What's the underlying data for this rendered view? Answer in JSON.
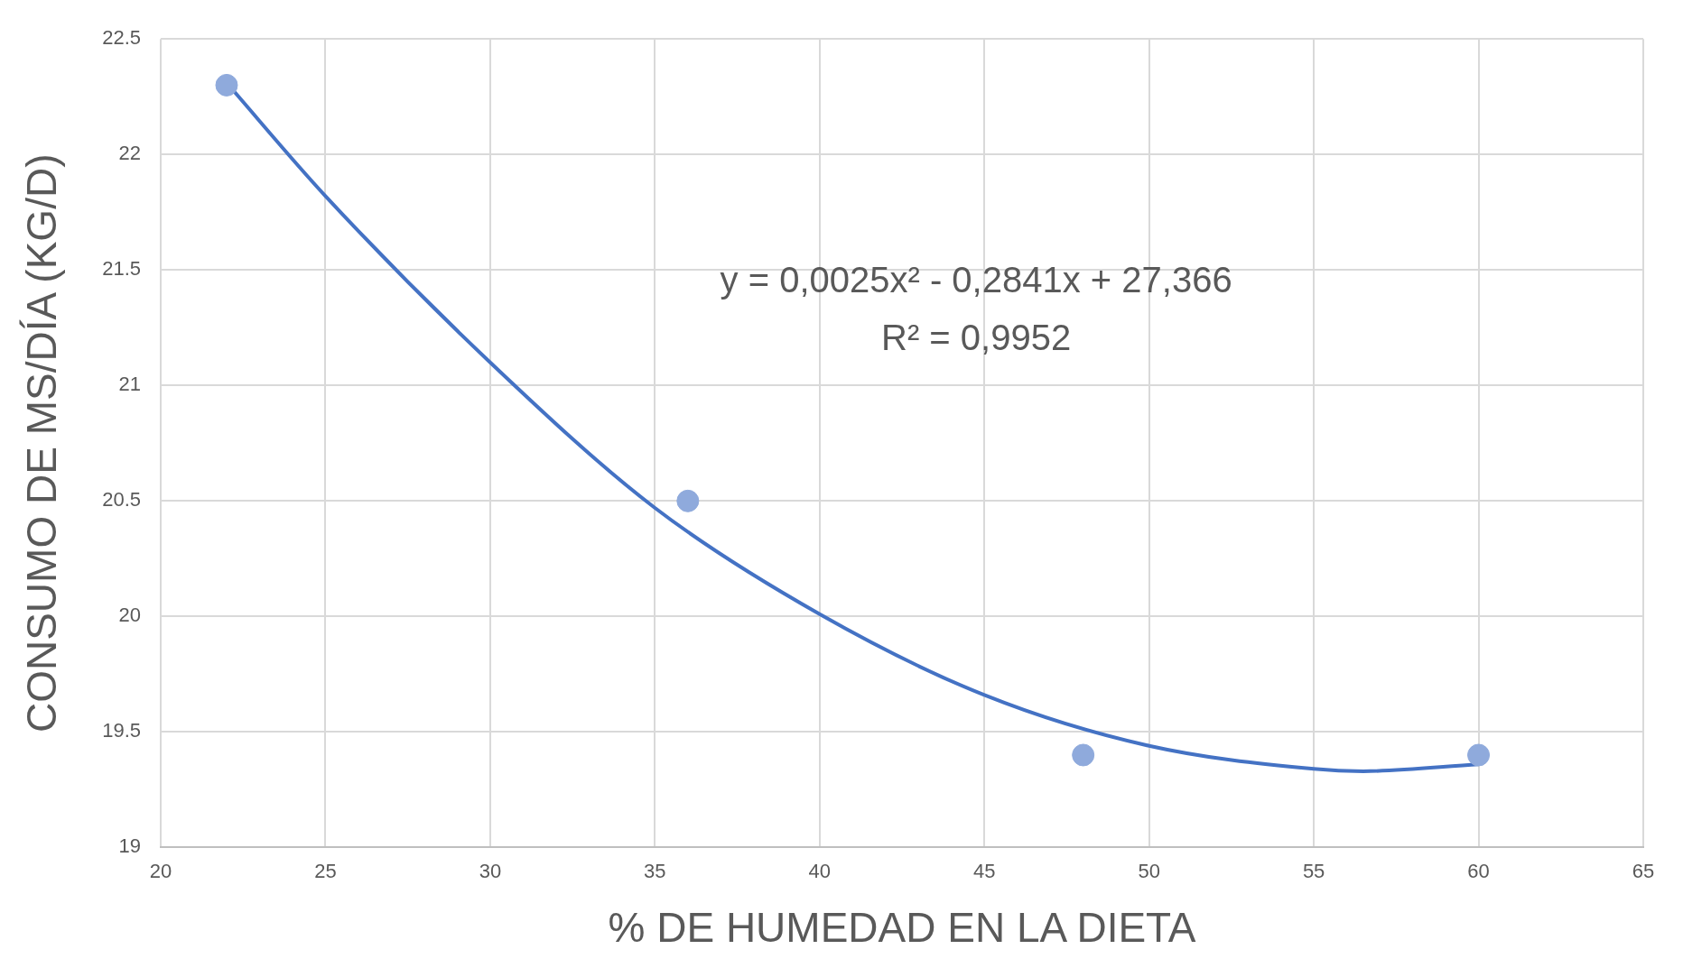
{
  "chart_data": {
    "type": "scatter",
    "xlabel": "% DE HUMEDAD EN LA DIETA",
    "ylabel": "CONSUMO DE MS/DÍA (KG/D)",
    "series": [
      {
        "color": "#8faadc",
        "marker": "circle",
        "x": [
          22,
          36,
          48,
          60
        ],
        "values": [
          22.3,
          20.5,
          19.4,
          19.4
        ]
      },
      {
        "type": "line",
        "color": "#4472c4",
        "x": [
          22,
          25,
          30,
          35,
          40,
          45,
          50,
          55,
          56.5,
          60
        ],
        "values": [
          22.31,
          21.82,
          21.1,
          20.47,
          20.01,
          19.66,
          19.44,
          19.34,
          19.33,
          19.36
        ]
      }
    ],
    "annotations": [
      "y = 0,0025x² - 0,2841x + 27,366",
      "R² = 0,9952"
    ],
    "xlim": [
      20,
      65
    ],
    "xticks": [
      20,
      25,
      30,
      35,
      40,
      45,
      50,
      55,
      60,
      65
    ],
    "ylim": [
      19,
      22.5
    ],
    "yticks": [
      19,
      19.5,
      20,
      20.5,
      21,
      21.5,
      22,
      22.5
    ],
    "grid": true,
    "legend": false
  }
}
